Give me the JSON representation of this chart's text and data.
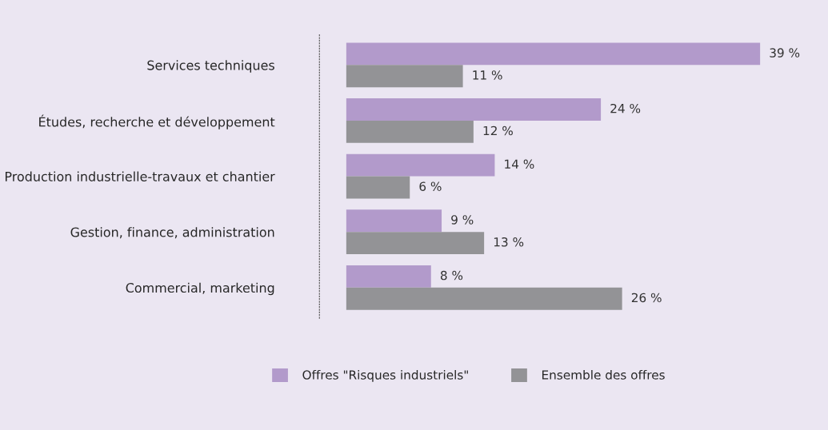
{
  "chart_data": {
    "type": "bar",
    "orientation": "horizontal",
    "categories": [
      "Services techniques",
      "Études, recherche et développement",
      "Production industrielle-travaux et chantier",
      "Gestion, finance, administration",
      "Commercial, marketing"
    ],
    "series": [
      {
        "name": "Offres \"Risques industriels\"",
        "color": "#b29acb",
        "values": [
          39,
          24,
          14,
          9,
          8
        ],
        "value_labels": [
          "39 %",
          "24 %",
          "14 %",
          "9 %",
          "8 %"
        ]
      },
      {
        "name": "Ensemble des offres",
        "color": "#939396",
        "values": [
          11,
          12,
          6,
          13,
          26
        ],
        "value_labels": [
          "11 %",
          "12 %",
          "6 %",
          "13 %",
          "26 %"
        ]
      }
    ],
    "legend": "bottom",
    "grid": false,
    "tick_labels": "y"
  }
}
